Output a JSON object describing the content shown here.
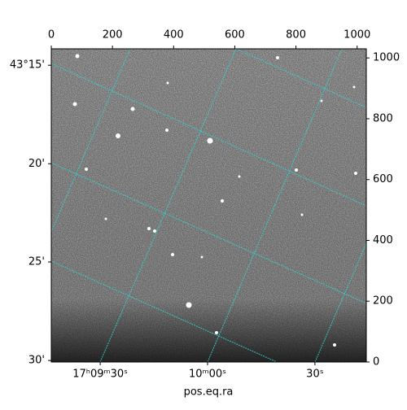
{
  "chart_data": {
    "type": "image",
    "xlabel": "pos.eq.ra",
    "xlim": [
      0,
      1030
    ],
    "ylim": [
      0,
      1030
    ],
    "xticks": [
      0,
      200,
      400,
      600,
      800,
      1000
    ],
    "yticks": [
      0,
      200,
      400,
      600,
      800,
      1000
    ],
    "dec_ticks": [
      {
        "value": 976,
        "label": "43°15'"
      },
      {
        "value": 652,
        "label": "20'"
      },
      {
        "value": 329,
        "label": "25'"
      },
      {
        "value": 5,
        "label": "30'"
      }
    ],
    "ra_ticks": [
      {
        "value": 160,
        "label": "17ʰ09ᵐ30ˢ"
      },
      {
        "value": 511,
        "label": "10ᵐ00ˢ"
      },
      {
        "value": 862,
        "label": "30ˢ"
      }
    ],
    "grid_color": "#2ed3d3"
  }
}
